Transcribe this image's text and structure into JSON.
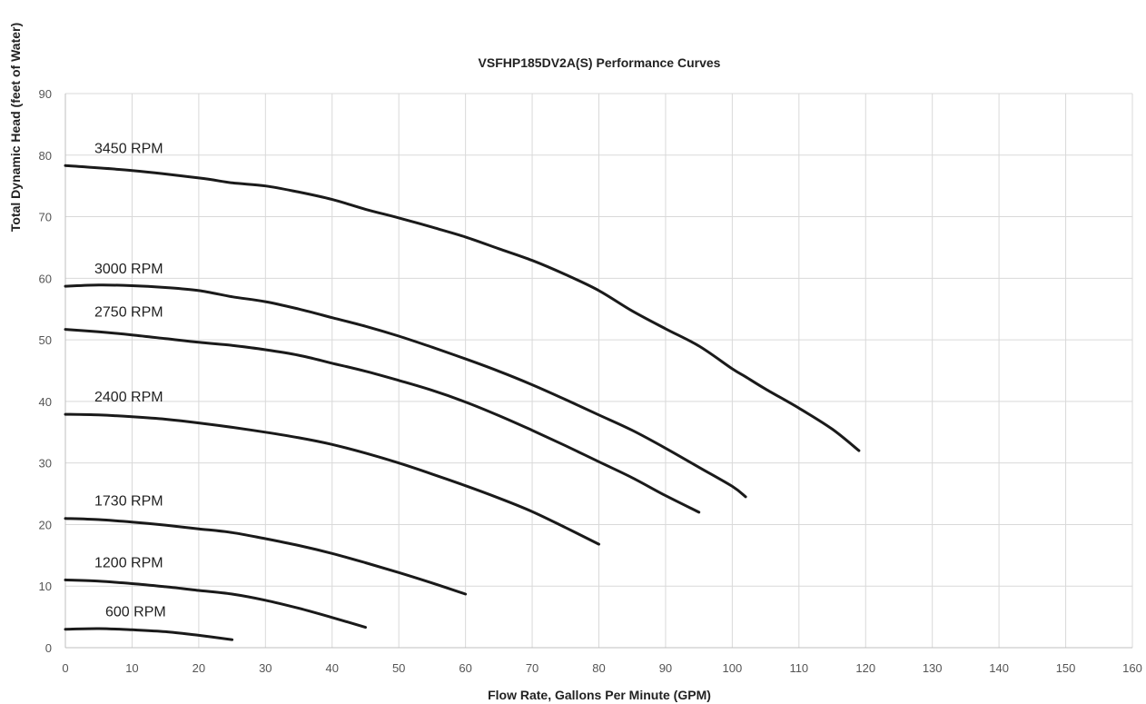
{
  "chart_data": {
    "type": "line",
    "title": "VSFHP185DV2A(S) Performance Curves",
    "xlabel": "Flow Rate, Gallons Per Minute (GPM)",
    "ylabel": "Total Dynamic Head (feet of Water)",
    "xlim": [
      0,
      160
    ],
    "ylim": [
      0,
      90
    ],
    "x_ticks": [
      0,
      10,
      20,
      30,
      40,
      50,
      60,
      70,
      80,
      90,
      100,
      110,
      120,
      130,
      140,
      150,
      160
    ],
    "y_ticks": [
      0,
      10,
      20,
      30,
      40,
      50,
      60,
      70,
      80,
      90
    ],
    "grid": true,
    "legend": "none",
    "series": [
      {
        "name": "3450 RPM",
        "x": [
          0,
          10,
          20,
          25,
          30,
          35,
          40,
          45,
          50,
          55,
          60,
          65,
          70,
          75,
          80,
          85,
          90,
          95,
          100,
          102,
          105,
          110,
          115,
          119
        ],
        "y": [
          78.3,
          77.5,
          76.3,
          75.5,
          75,
          74,
          72.8,
          71.2,
          69.8,
          68.3,
          66.7,
          64.8,
          62.9,
          60.6,
          58,
          54.7,
          51.8,
          49,
          45.3,
          44,
          42,
          38.9,
          35.5,
          32
        ]
      },
      {
        "name": "3000 RPM",
        "x": [
          0,
          5,
          10,
          15,
          20,
          25,
          30,
          35,
          40,
          45,
          50,
          55,
          60,
          65,
          70,
          75,
          80,
          85,
          90,
          95,
          100,
          102
        ],
        "y": [
          58.7,
          58.9,
          58.8,
          58.5,
          58,
          57,
          56.2,
          55,
          53.6,
          52.2,
          50.6,
          48.8,
          46.9,
          44.9,
          42.7,
          40.3,
          37.8,
          35.3,
          32.4,
          29.3,
          26.2,
          24.5
        ]
      },
      {
        "name": "2750 RPM",
        "x": [
          0,
          5,
          10,
          15,
          20,
          25,
          30,
          35,
          40,
          45,
          50,
          55,
          60,
          65,
          70,
          75,
          80,
          85,
          90,
          95
        ],
        "y": [
          51.7,
          51.3,
          50.8,
          50.2,
          49.6,
          49.1,
          48.4,
          47.5,
          46.2,
          44.9,
          43.4,
          41.8,
          39.9,
          37.7,
          35.3,
          32.8,
          30.2,
          27.6,
          24.7,
          22
        ]
      },
      {
        "name": "2400 RPM",
        "x": [
          0,
          5,
          10,
          15,
          20,
          25,
          30,
          35,
          40,
          45,
          50,
          55,
          60,
          65,
          70,
          75,
          80
        ],
        "y": [
          37.9,
          37.8,
          37.5,
          37.1,
          36.5,
          35.8,
          35,
          34.1,
          33,
          31.6,
          30,
          28.2,
          26.3,
          24.3,
          22.1,
          19.5,
          16.8
        ]
      },
      {
        "name": "1730 RPM",
        "x": [
          0,
          5,
          10,
          15,
          20,
          25,
          30,
          35,
          40,
          45,
          50,
          55,
          60
        ],
        "y": [
          21,
          20.8,
          20.4,
          19.9,
          19.3,
          18.7,
          17.7,
          16.6,
          15.3,
          13.8,
          12.2,
          10.5,
          8.7
        ]
      },
      {
        "name": "1200 RPM",
        "x": [
          0,
          5,
          10,
          15,
          20,
          25,
          30,
          35,
          40,
          45
        ],
        "y": [
          11,
          10.8,
          10.4,
          9.9,
          9.3,
          8.7,
          7.7,
          6.4,
          4.9,
          3.3
        ]
      },
      {
        "name": "600 RPM",
        "x": [
          0,
          5,
          10,
          15,
          20,
          25
        ],
        "y": [
          3,
          3.1,
          2.9,
          2.6,
          2,
          1.3
        ]
      }
    ]
  }
}
